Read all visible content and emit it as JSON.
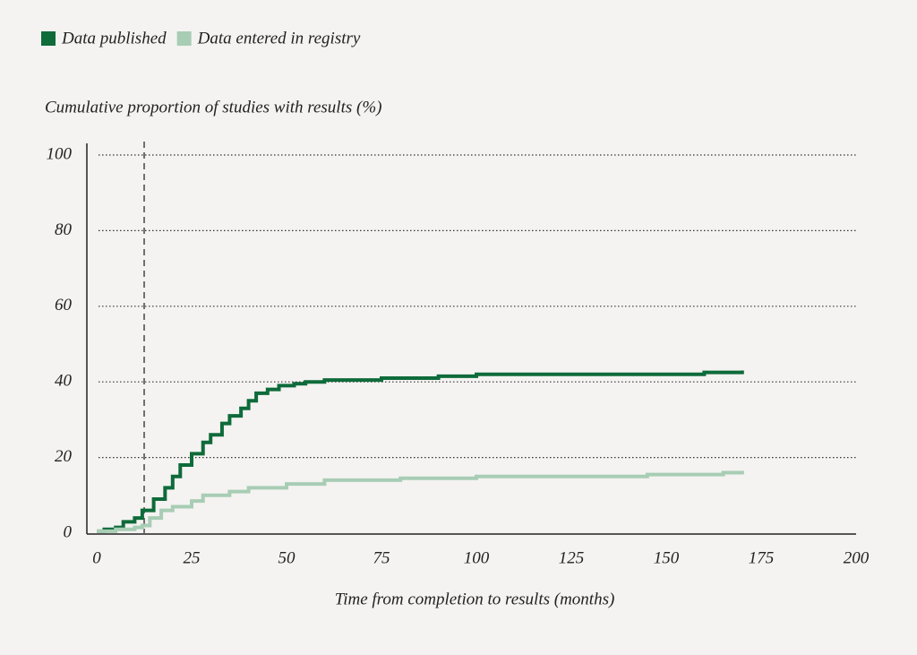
{
  "chart_data": {
    "type": "step-line",
    "y_axis_label": "Cumulative proportion of studies with results (%)",
    "x_axis_label": "Time from completion to results (months)",
    "xlim": [
      0,
      200
    ],
    "xticks": [
      0,
      25,
      50,
      75,
      100,
      125,
      150,
      175,
      200
    ],
    "ylim": [
      0,
      100
    ],
    "yticks": [
      0,
      20,
      40,
      60,
      80,
      100
    ],
    "grid": true,
    "vline_x": 12.5,
    "series": [
      {
        "name": "Data published",
        "color": "#0e6b3a",
        "x": [
          0,
          2,
          5,
          7,
          10,
          12,
          15,
          18,
          20,
          22,
          25,
          28,
          30,
          33,
          35,
          38,
          40,
          42,
          45,
          48,
          52,
          55,
          60,
          75,
          90,
          100,
          160,
          170
        ],
        "values": [
          0.5,
          1,
          1.5,
          3,
          4,
          6,
          9,
          12,
          15,
          18,
          21,
          24,
          26,
          29,
          31,
          33,
          35,
          37,
          38,
          39,
          39.5,
          40,
          40.5,
          41,
          41.5,
          42,
          42.5,
          43
        ]
      },
      {
        "name": "Data entered in registry",
        "color": "#a8cdb5",
        "x": [
          0,
          5,
          10,
          12,
          14,
          17,
          20,
          25,
          28,
          35,
          40,
          50,
          60,
          80,
          100,
          145,
          165,
          170
        ],
        "values": [
          0.5,
          1,
          1.5,
          2,
          4,
          6,
          7,
          8.5,
          10,
          11,
          12,
          13,
          14,
          14.5,
          15,
          15.5,
          16,
          16.5
        ]
      }
    ]
  }
}
